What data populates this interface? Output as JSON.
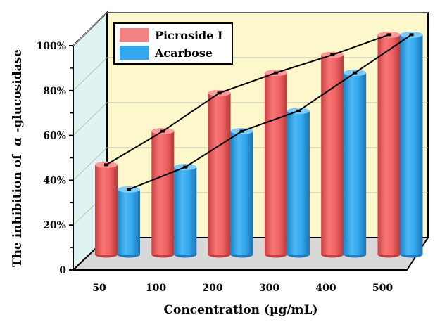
{
  "chart_data": {
    "type": "bar",
    "style": "3d-cylinder",
    "title": "",
    "xlabel": "Concentration (µg/mL)",
    "ylabel_prefix": "The inhibition of",
    "ylabel_greek": "α",
    "ylabel_suffix": "-glucosidase",
    "ylim": [
      0,
      100
    ],
    "yticks": [
      {
        "value": 0,
        "label": "0"
      },
      {
        "value": 20,
        "label": "20%"
      },
      {
        "value": 40,
        "label": "40%"
      },
      {
        "value": 60,
        "label": "60%"
      },
      {
        "value": 80,
        "label": "80%"
      },
      {
        "value": 100,
        "label": "100%"
      }
    ],
    "categories": [
      "50",
      "100",
      "200",
      "300",
      "400",
      "500"
    ],
    "series": [
      {
        "name": "Picroside I",
        "values": [
          40,
          55,
          72,
          81,
          89,
          98
        ],
        "color": "#f06363",
        "color_dark": "#c23e3e",
        "color_light": "#ff9a9a"
      },
      {
        "name": "Acarbose",
        "values": [
          29,
          39,
          55,
          64,
          81,
          98
        ],
        "color": "#33a8ee",
        "color_dark": "#1c7cbf",
        "color_light": "#7fcbf7"
      }
    ],
    "legend_position": "top-left",
    "trend_lines": true,
    "back_wall_color": "#fdf7cc",
    "side_wall_color": "#dff3f3",
    "floor_color": "#d8d8d8"
  }
}
